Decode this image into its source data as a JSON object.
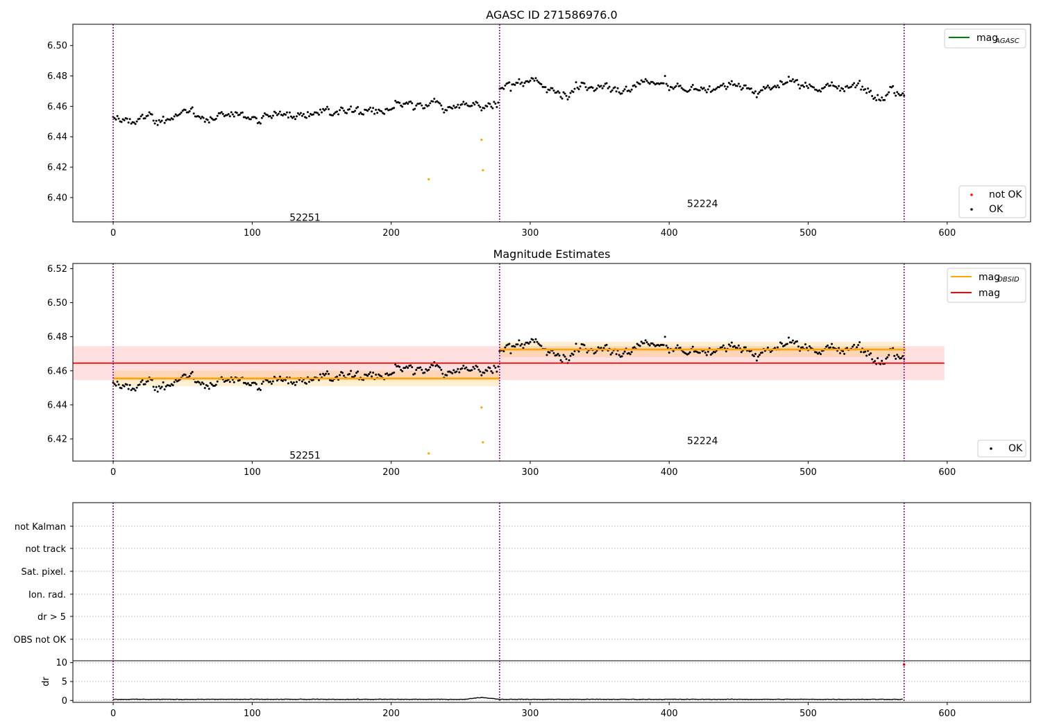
{
  "chart_data": [
    {
      "type": "scatter",
      "title": "AGASC ID 271586976.0",
      "xlim": [
        -29,
        660
      ],
      "ylim": [
        6.384,
        6.514
      ],
      "xticks": [
        "0",
        "100",
        "200",
        "300",
        "400",
        "500",
        "600"
      ],
      "yticks": [
        "6.40",
        "6.42",
        "6.44",
        "6.46",
        "6.48",
        "6.50"
      ],
      "obsid_boundaries": [
        0,
        278,
        569
      ],
      "obsid_labels": [
        {
          "text": "52251",
          "x": 138,
          "y": 6.387
        },
        {
          "text": "52224",
          "x": 424,
          "y": 6.396
        }
      ],
      "segments": [
        {
          "x_start": 0,
          "x_end": 277,
          "mean": 6.4555
        },
        {
          "x_start": 278,
          "x_end": 569,
          "mean": 6.4725
        }
      ],
      "outliers": [
        {
          "x": 227,
          "y": 6.412
        },
        {
          "x": 265,
          "y": 6.438
        },
        {
          "x": 266,
          "y": 6.418
        }
      ],
      "legend_lines": [
        {
          "label": "mag",
          "sub": "AGASC",
          "color": "#008000"
        }
      ],
      "legend_points": [
        {
          "label": "not OK",
          "color": "#ff0000"
        },
        {
          "label": "OK",
          "color": "#000000"
        }
      ]
    },
    {
      "type": "scatter",
      "title": "Magnitude Estimates",
      "xlim": [
        -29,
        660
      ],
      "ylim": [
        6.407,
        6.523
      ],
      "xticks": [
        "0",
        "100",
        "200",
        "300",
        "400",
        "500",
        "600"
      ],
      "yticks": [
        "6.42",
        "6.44",
        "6.46",
        "6.48",
        "6.50",
        "6.52"
      ],
      "obsid_boundaries": [
        0,
        278,
        569
      ],
      "obsid_labels": [
        {
          "text": "52251",
          "x": 138,
          "y": 6.4105
        },
        {
          "text": "52224",
          "x": 424,
          "y": 6.419
        }
      ],
      "segments": [
        {
          "x_start": 0,
          "x_end": 277,
          "mean": 6.4555
        },
        {
          "x_start": 278,
          "x_end": 569,
          "mean": 6.4725
        }
      ],
      "mag_obsid": [
        {
          "x_start": 0,
          "x_end": 278,
          "value": 6.4555,
          "band": [
            6.451,
            6.46
          ]
        },
        {
          "x_start": 278,
          "x_end": 570,
          "value": 6.4725,
          "band": [
            6.468,
            6.477
          ]
        }
      ],
      "mag": {
        "x_start": -29,
        "x_end": 598,
        "value": 6.4645,
        "band": [
          6.4545,
          6.4745
        ]
      },
      "outliers": [
        {
          "x": 227,
          "y": 6.4115
        },
        {
          "x": 265,
          "y": 6.4385
        },
        {
          "x": 266,
          "y": 6.418
        }
      ],
      "legend_lines": [
        {
          "label": "mag",
          "sub": "OBSID",
          "color": "#ffa500"
        },
        {
          "label": "mag",
          "sub": "",
          "color": "#ff0000"
        }
      ],
      "legend_points": [
        {
          "label": "OK",
          "color": "#000000"
        }
      ]
    },
    {
      "type": "scatter",
      "categories": [
        "not Kalman",
        "not track",
        "Sat. pixel.",
        "Ion. rad.",
        "dr > 5",
        "OBS not OK"
      ],
      "xlim": [
        -29,
        660
      ],
      "obsid_boundaries": [
        0,
        278,
        569
      ]
    },
    {
      "type": "line",
      "ylabel": "dr",
      "xlim": [
        -29,
        660
      ],
      "ylim": [
        -0.5,
        10.5
      ],
      "xticks": [
        "0",
        "100",
        "200",
        "300",
        "400",
        "500",
        "600"
      ],
      "yticks": [
        "0",
        "5",
        "10"
      ],
      "obsid_boundaries": [
        0,
        278,
        569
      ],
      "dr_level": 0.3,
      "dr_peak": {
        "x": 265,
        "y": 0.8
      },
      "dr_flagged": {
        "x": 569,
        "y": 9.5
      }
    }
  ],
  "colors": {
    "ok": "#000000",
    "not_ok": "#ff0000",
    "outlier": "#ffa500",
    "obsid_line": "#800080",
    "mag_agasc": "#008000",
    "mag_obsid": "#ffa500",
    "mag": "#ff0000"
  }
}
